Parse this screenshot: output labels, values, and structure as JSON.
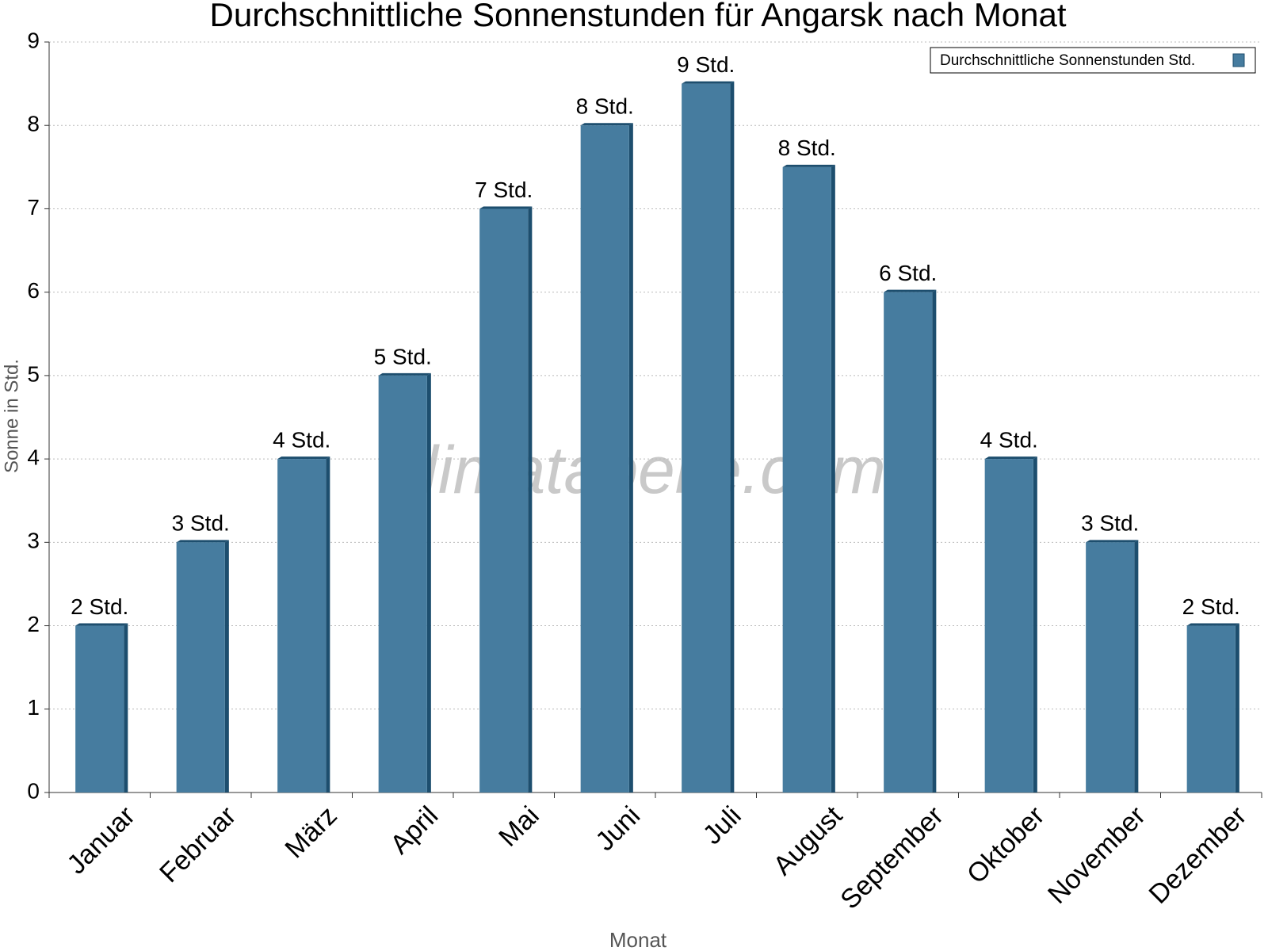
{
  "chart_data": {
    "type": "bar",
    "title": "Durchschnittliche Sonnenstunden für Angarsk nach Monat",
    "x_label": "Monat",
    "y_label": "Sonne in Std.",
    "watermark": "klimatabelle.com",
    "categories": [
      "Januar",
      "Februar",
      "März",
      "April",
      "Mai",
      "Juni",
      "Juli",
      "August",
      "September",
      "Oktober",
      "November",
      "Dezember"
    ],
    "series": [
      {
        "name": "Durchschnittliche Sonnenstunden Std.",
        "color": "#467c9f",
        "values": [
          2,
          3,
          4,
          5,
          7,
          8,
          8.5,
          7.5,
          6,
          4,
          3,
          2
        ],
        "value_labels": [
          "2 Std.",
          "3 Std.",
          "4 Std.",
          "5 Std.",
          "7 Std.",
          "8 Std.",
          "9 Std.",
          "8 Std.",
          "6 Std.",
          "4 Std.",
          "3 Std.",
          "2 Std."
        ]
      }
    ],
    "ylim": [
      0,
      9
    ],
    "yticks": [
      0,
      1,
      2,
      3,
      4,
      5,
      6,
      7,
      8,
      9
    ],
    "grid": true,
    "legend": "top-right"
  }
}
